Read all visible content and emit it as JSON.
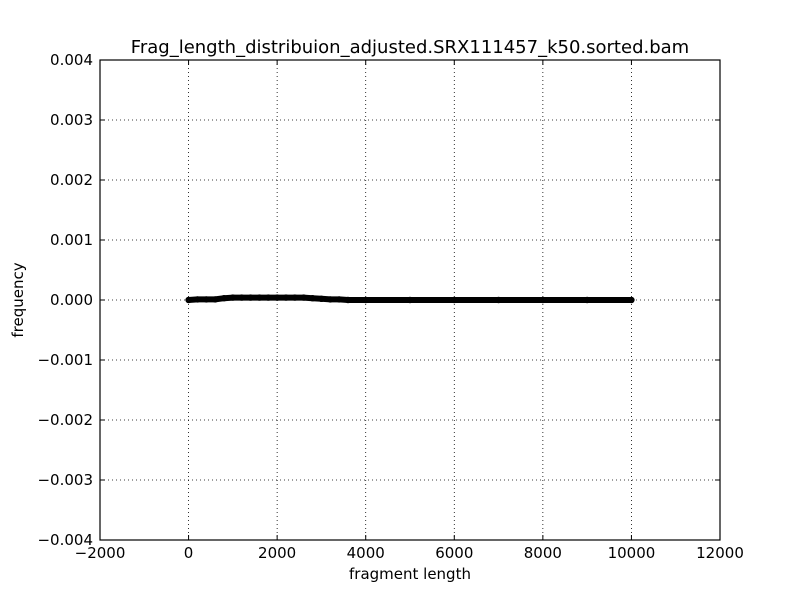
{
  "chart_data": {
    "type": "line",
    "title": "Frag_length_distribuion_adjusted.SRX111457_k50.sorted.bam",
    "xlabel": "fragment length",
    "ylabel": "frequency",
    "xlim": [
      -2000,
      12000
    ],
    "ylim": [
      -0.004,
      0.004
    ],
    "x_ticks": [
      -2000,
      0,
      2000,
      4000,
      6000,
      8000,
      10000,
      12000
    ],
    "x_tick_labels": [
      "−2000",
      "0",
      "2000",
      "4000",
      "6000",
      "8000",
      "10000",
      "12000"
    ],
    "y_ticks": [
      -0.004,
      -0.003,
      -0.002,
      -0.001,
      0.0,
      0.001,
      0.002,
      0.003,
      0.004
    ],
    "y_tick_labels": [
      "−0.004",
      "−0.003",
      "−0.002",
      "−0.001",
      "0.000",
      "0.001",
      "0.002",
      "0.003",
      "0.004"
    ],
    "grid": true,
    "marker": "thick black markers",
    "series": [
      {
        "color": "#000000",
        "x": [
          0,
          200,
          400,
          600,
          800,
          1000,
          1200,
          1400,
          1600,
          1800,
          2000,
          2200,
          2400,
          2600,
          2800,
          3000,
          3200,
          3400,
          3600,
          4000,
          5000,
          6000,
          7000,
          8000,
          9000,
          10000
        ],
        "y": [
          0.0,
          1e-05,
          1e-05,
          1e-05,
          3e-05,
          4e-05,
          4e-05,
          4e-05,
          4e-05,
          4e-05,
          4e-05,
          4e-05,
          4e-05,
          4e-05,
          3e-05,
          2e-05,
          1e-05,
          1e-05,
          0.0,
          0.0,
          0.0,
          0.0,
          0.0,
          0.0,
          0.0,
          0.0
        ]
      }
    ]
  }
}
